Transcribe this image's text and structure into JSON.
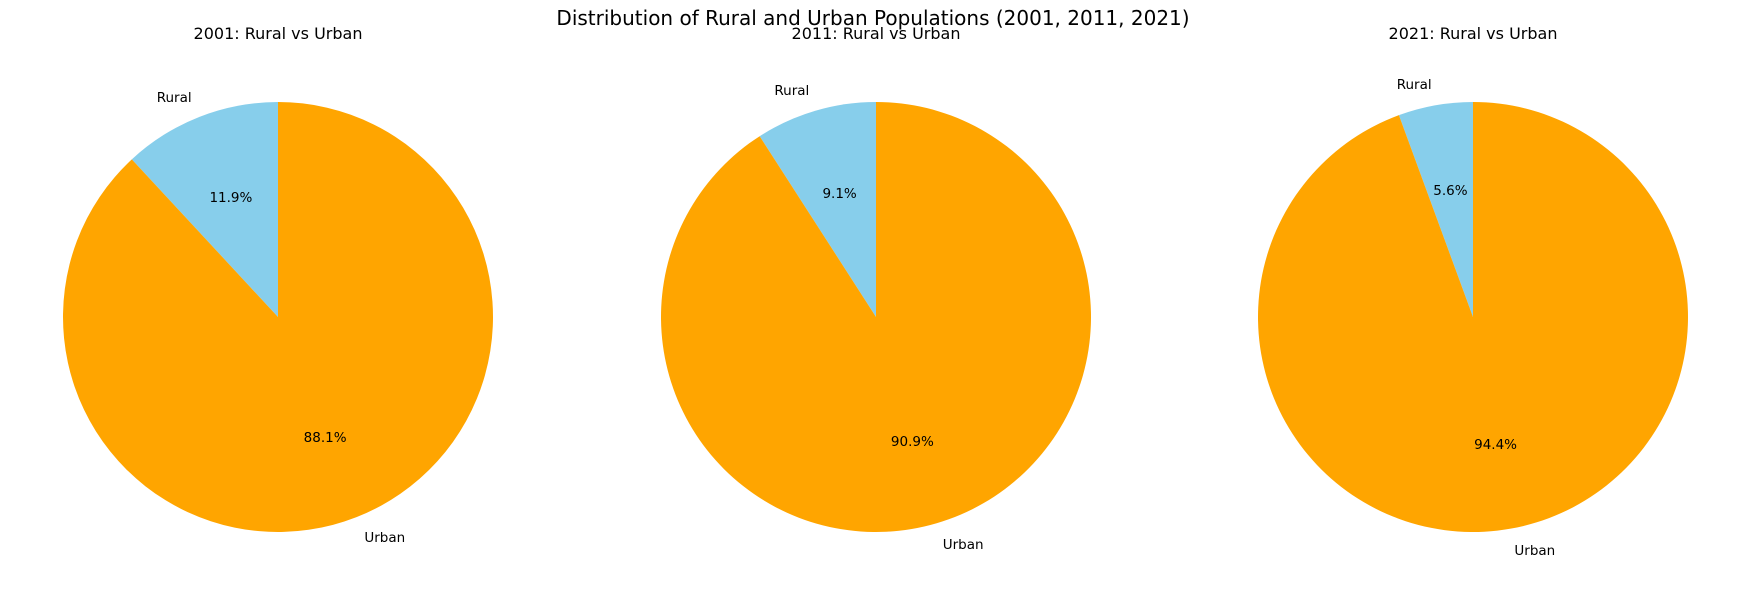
{
  "suptitle": "Distribution of Rural and Urban Populations (2001, 2011, 2021)",
  "chart_data": [
    {
      "type": "pie",
      "title": "2001: Rural vs Urban",
      "labels": [
        "Rural",
        "Urban"
      ],
      "values": [
        11.9,
        88.1
      ],
      "autopct": [
        "11.9%",
        "88.1%"
      ],
      "colors": [
        "#87CEEB",
        "#FFA500"
      ]
    },
    {
      "type": "pie",
      "title": "2011: Rural vs Urban",
      "labels": [
        "Rural",
        "Urban"
      ],
      "values": [
        9.1,
        90.9
      ],
      "autopct": [
        "9.1%",
        "90.9%"
      ],
      "colors": [
        "#87CEEB",
        "#FFA500"
      ]
    },
    {
      "type": "pie",
      "title": "2021: Rural vs Urban",
      "labels": [
        "Rural",
        "Urban"
      ],
      "values": [
        5.6,
        94.4
      ],
      "autopct": [
        "5.6%",
        "94.4%"
      ],
      "colors": [
        "#87CEEB",
        "#FFA500"
      ]
    }
  ]
}
